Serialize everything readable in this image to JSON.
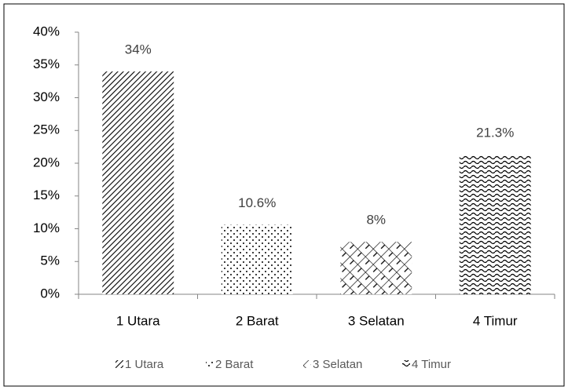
{
  "chart_data": {
    "type": "bar",
    "categories": [
      "1 Utara",
      "2 Barat",
      "3 Selatan",
      "4 Timur"
    ],
    "values": [
      34,
      10.6,
      8,
      21.3
    ],
    "value_labels": [
      "34%",
      "10.6%",
      "8%",
      "21.3%"
    ],
    "color": "#000000",
    "ylim": [
      0,
      40
    ],
    "yticks": [
      {
        "value": 0,
        "label": "0%"
      },
      {
        "value": 5,
        "label": "5%"
      },
      {
        "value": 10,
        "label": "10%"
      },
      {
        "value": 15,
        "label": "15%"
      },
      {
        "value": 20,
        "label": "20%"
      },
      {
        "value": 25,
        "label": "25%"
      },
      {
        "value": 30,
        "label": "30%"
      },
      {
        "value": 35,
        "label": "35%"
      },
      {
        "value": 40,
        "label": "40%"
      }
    ],
    "grid": false,
    "legend": "bottom"
  }
}
